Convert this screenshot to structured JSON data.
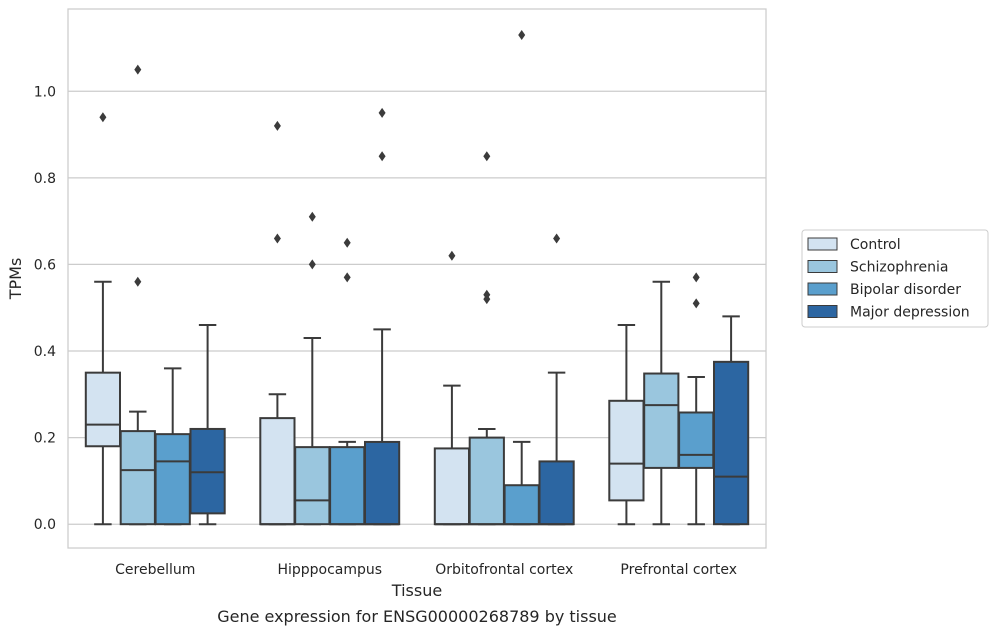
{
  "chart_data": {
    "type": "boxplot",
    "xlabel": "Tissue",
    "ylabel": "TPMs",
    "caption": "Gene expression for ENSG00000268789 by tissue",
    "ylim": [
      -0.055,
      1.19
    ],
    "yticks": [
      0.0,
      0.2,
      0.4,
      0.6,
      0.8,
      1.0
    ],
    "ytick_labels": [
      "0.0",
      "0.2",
      "0.4",
      "0.6",
      "0.8",
      "1.0"
    ],
    "grid": "horizontal",
    "legend_position": "right",
    "categories": [
      "Cerebellum",
      "Hipppocampus",
      "Orbitofrontal cortex",
      "Prefrontal cortex"
    ],
    "series": [
      {
        "name": "Control",
        "color": "#d3e3f1",
        "boxes": [
          {
            "whislo": 0.0,
            "q1": 0.18,
            "med": 0.23,
            "q3": 0.35,
            "whishi": 0.56,
            "fliers": [
              0.94
            ]
          },
          {
            "whislo": 0.0,
            "q1": 0.0,
            "med": 0.0,
            "q3": 0.245,
            "whishi": 0.3,
            "fliers": [
              0.66,
              0.92
            ]
          },
          {
            "whislo": 0.0,
            "q1": 0.0,
            "med": 0.0,
            "q3": 0.175,
            "whishi": 0.32,
            "fliers": [
              0.62
            ]
          },
          {
            "whislo": 0.0,
            "q1": 0.055,
            "med": 0.14,
            "q3": 0.285,
            "whishi": 0.46,
            "fliers": []
          }
        ]
      },
      {
        "name": "Schizophrenia",
        "color": "#9ac6de",
        "boxes": [
          {
            "whislo": 0.0,
            "q1": 0.0,
            "med": 0.125,
            "q3": 0.215,
            "whishi": 0.26,
            "fliers": [
              0.56,
              1.05
            ]
          },
          {
            "whislo": 0.0,
            "q1": 0.0,
            "med": 0.055,
            "q3": 0.178,
            "whishi": 0.43,
            "fliers": [
              0.6,
              0.71
            ]
          },
          {
            "whislo": 0.0,
            "q1": 0.0,
            "med": 0.0,
            "q3": 0.2,
            "whishi": 0.22,
            "fliers": [
              0.52,
              0.53,
              0.85
            ]
          },
          {
            "whislo": 0.0,
            "q1": 0.13,
            "med": 0.275,
            "q3": 0.348,
            "whishi": 0.56,
            "fliers": []
          }
        ]
      },
      {
        "name": "Bipolar disorder",
        "color": "#5a9fcd",
        "boxes": [
          {
            "whislo": 0.0,
            "q1": 0.0,
            "med": 0.145,
            "q3": 0.208,
            "whishi": 0.36,
            "fliers": []
          },
          {
            "whislo": 0.0,
            "q1": 0.0,
            "med": 0.0,
            "q3": 0.178,
            "whishi": 0.19,
            "fliers": [
              0.57,
              0.65
            ]
          },
          {
            "whislo": 0.0,
            "q1": 0.0,
            "med": 0.0,
            "q3": 0.09,
            "whishi": 0.19,
            "fliers": [
              1.13
            ]
          },
          {
            "whislo": 0.0,
            "q1": 0.13,
            "med": 0.16,
            "q3": 0.258,
            "whishi": 0.34,
            "fliers": [
              0.51,
              0.57
            ]
          }
        ]
      },
      {
        "name": "Major depression",
        "color": "#2c66a2",
        "boxes": [
          {
            "whislo": 0.0,
            "q1": 0.025,
            "med": 0.12,
            "q3": 0.22,
            "whishi": 0.46,
            "fliers": []
          },
          {
            "whislo": 0.0,
            "q1": 0.0,
            "med": 0.0,
            "q3": 0.19,
            "whishi": 0.45,
            "fliers": [
              0.85,
              0.95
            ]
          },
          {
            "whislo": 0.0,
            "q1": 0.0,
            "med": 0.0,
            "q3": 0.145,
            "whishi": 0.35,
            "fliers": [
              0.66
            ]
          },
          {
            "whislo": 0.0,
            "q1": 0.0,
            "med": 0.11,
            "q3": 0.375,
            "whishi": 0.48,
            "fliers": []
          }
        ]
      }
    ]
  }
}
